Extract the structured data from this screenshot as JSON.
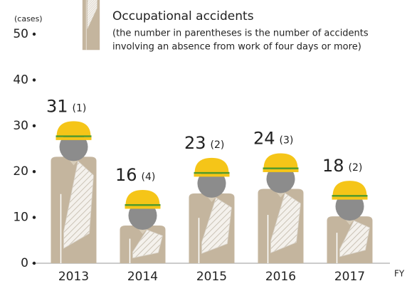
{
  "chart_data": {
    "type": "pictogram-bar",
    "y_axis_label": "(cases)",
    "x_axis_label": "FY",
    "categories": [
      "2013",
      "2014",
      "2015",
      "2016",
      "2017"
    ],
    "series": [
      {
        "name": "Occupational accidents",
        "color": "#c4b59e",
        "values": [
          31,
          16,
          23,
          24,
          18
        ]
      }
    ],
    "note": [
      "(the number in parentheses is the number of accidents",
      "involving an absence from work of four days or more)"
    ],
    "absence_cases": {
      "values": [
        1,
        4,
        2,
        3,
        2
      ],
      "value_labels": [
        "(1)",
        "(4)",
        "(2)",
        "(3)",
        "(2)"
      ]
    },
    "ylim": [
      0,
      50
    ],
    "yticks": [
      0,
      10,
      20,
      30,
      40,
      50
    ],
    "grid": false
  }
}
